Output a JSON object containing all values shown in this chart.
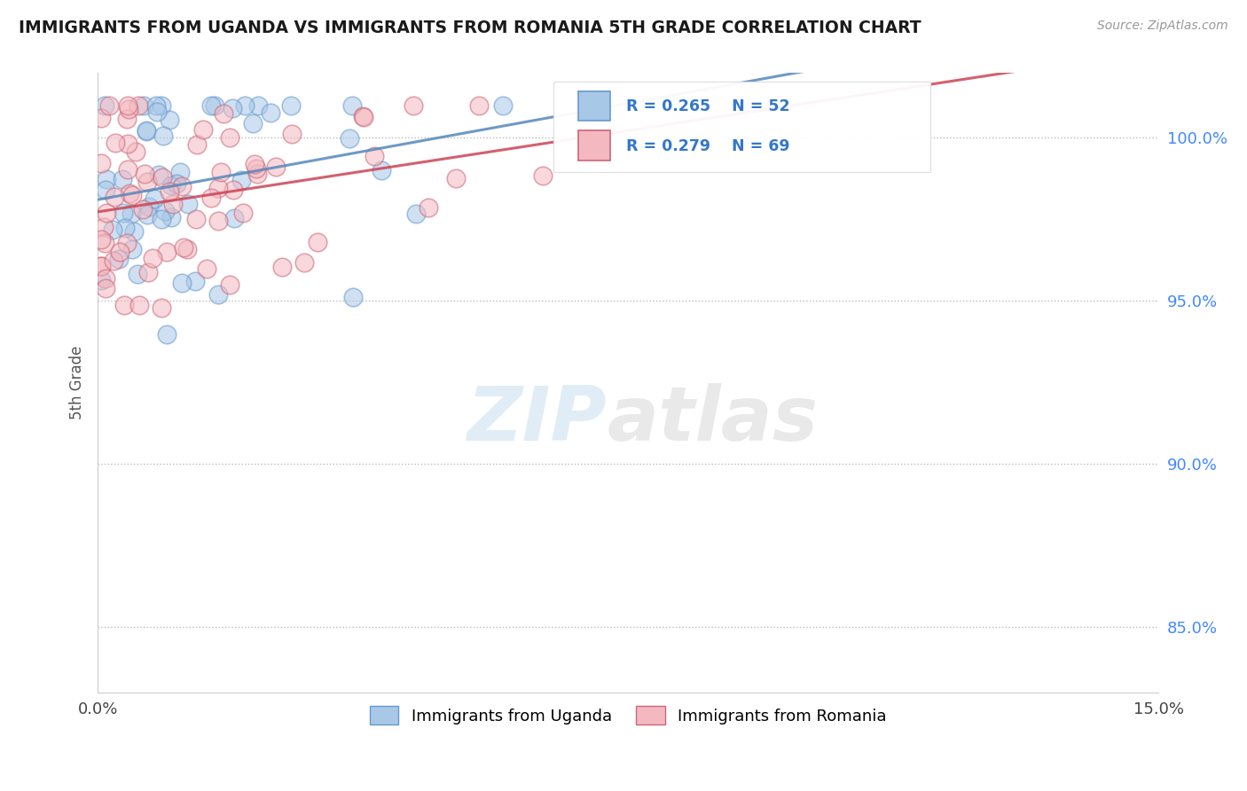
{
  "title": "IMMIGRANTS FROM UGANDA VS IMMIGRANTS FROM ROMANIA 5TH GRADE CORRELATION CHART",
  "source": "Source: ZipAtlas.com",
  "ylabel": "5th Grade",
  "y_ticks": [
    85.0,
    90.0,
    95.0,
    100.0
  ],
  "uganda_color": "#a8c8e8",
  "uganda_edge_color": "#6699cc",
  "romania_color": "#f4b8c0",
  "romania_edge_color": "#cc6677",
  "uganda_line_color": "#5588bb",
  "romania_line_color": "#cc4455",
  "uganda_R": 0.265,
  "uganda_N": 52,
  "romania_R": 0.279,
  "romania_N": 69,
  "legend_label_uganda": "Immigrants from Uganda",
  "legend_label_romania": "Immigrants from Romania",
  "watermark_zip": "ZIP",
  "watermark_atlas": "atlas",
  "tick_label_color": "#4488ff",
  "axis_label_color": "#555555"
}
